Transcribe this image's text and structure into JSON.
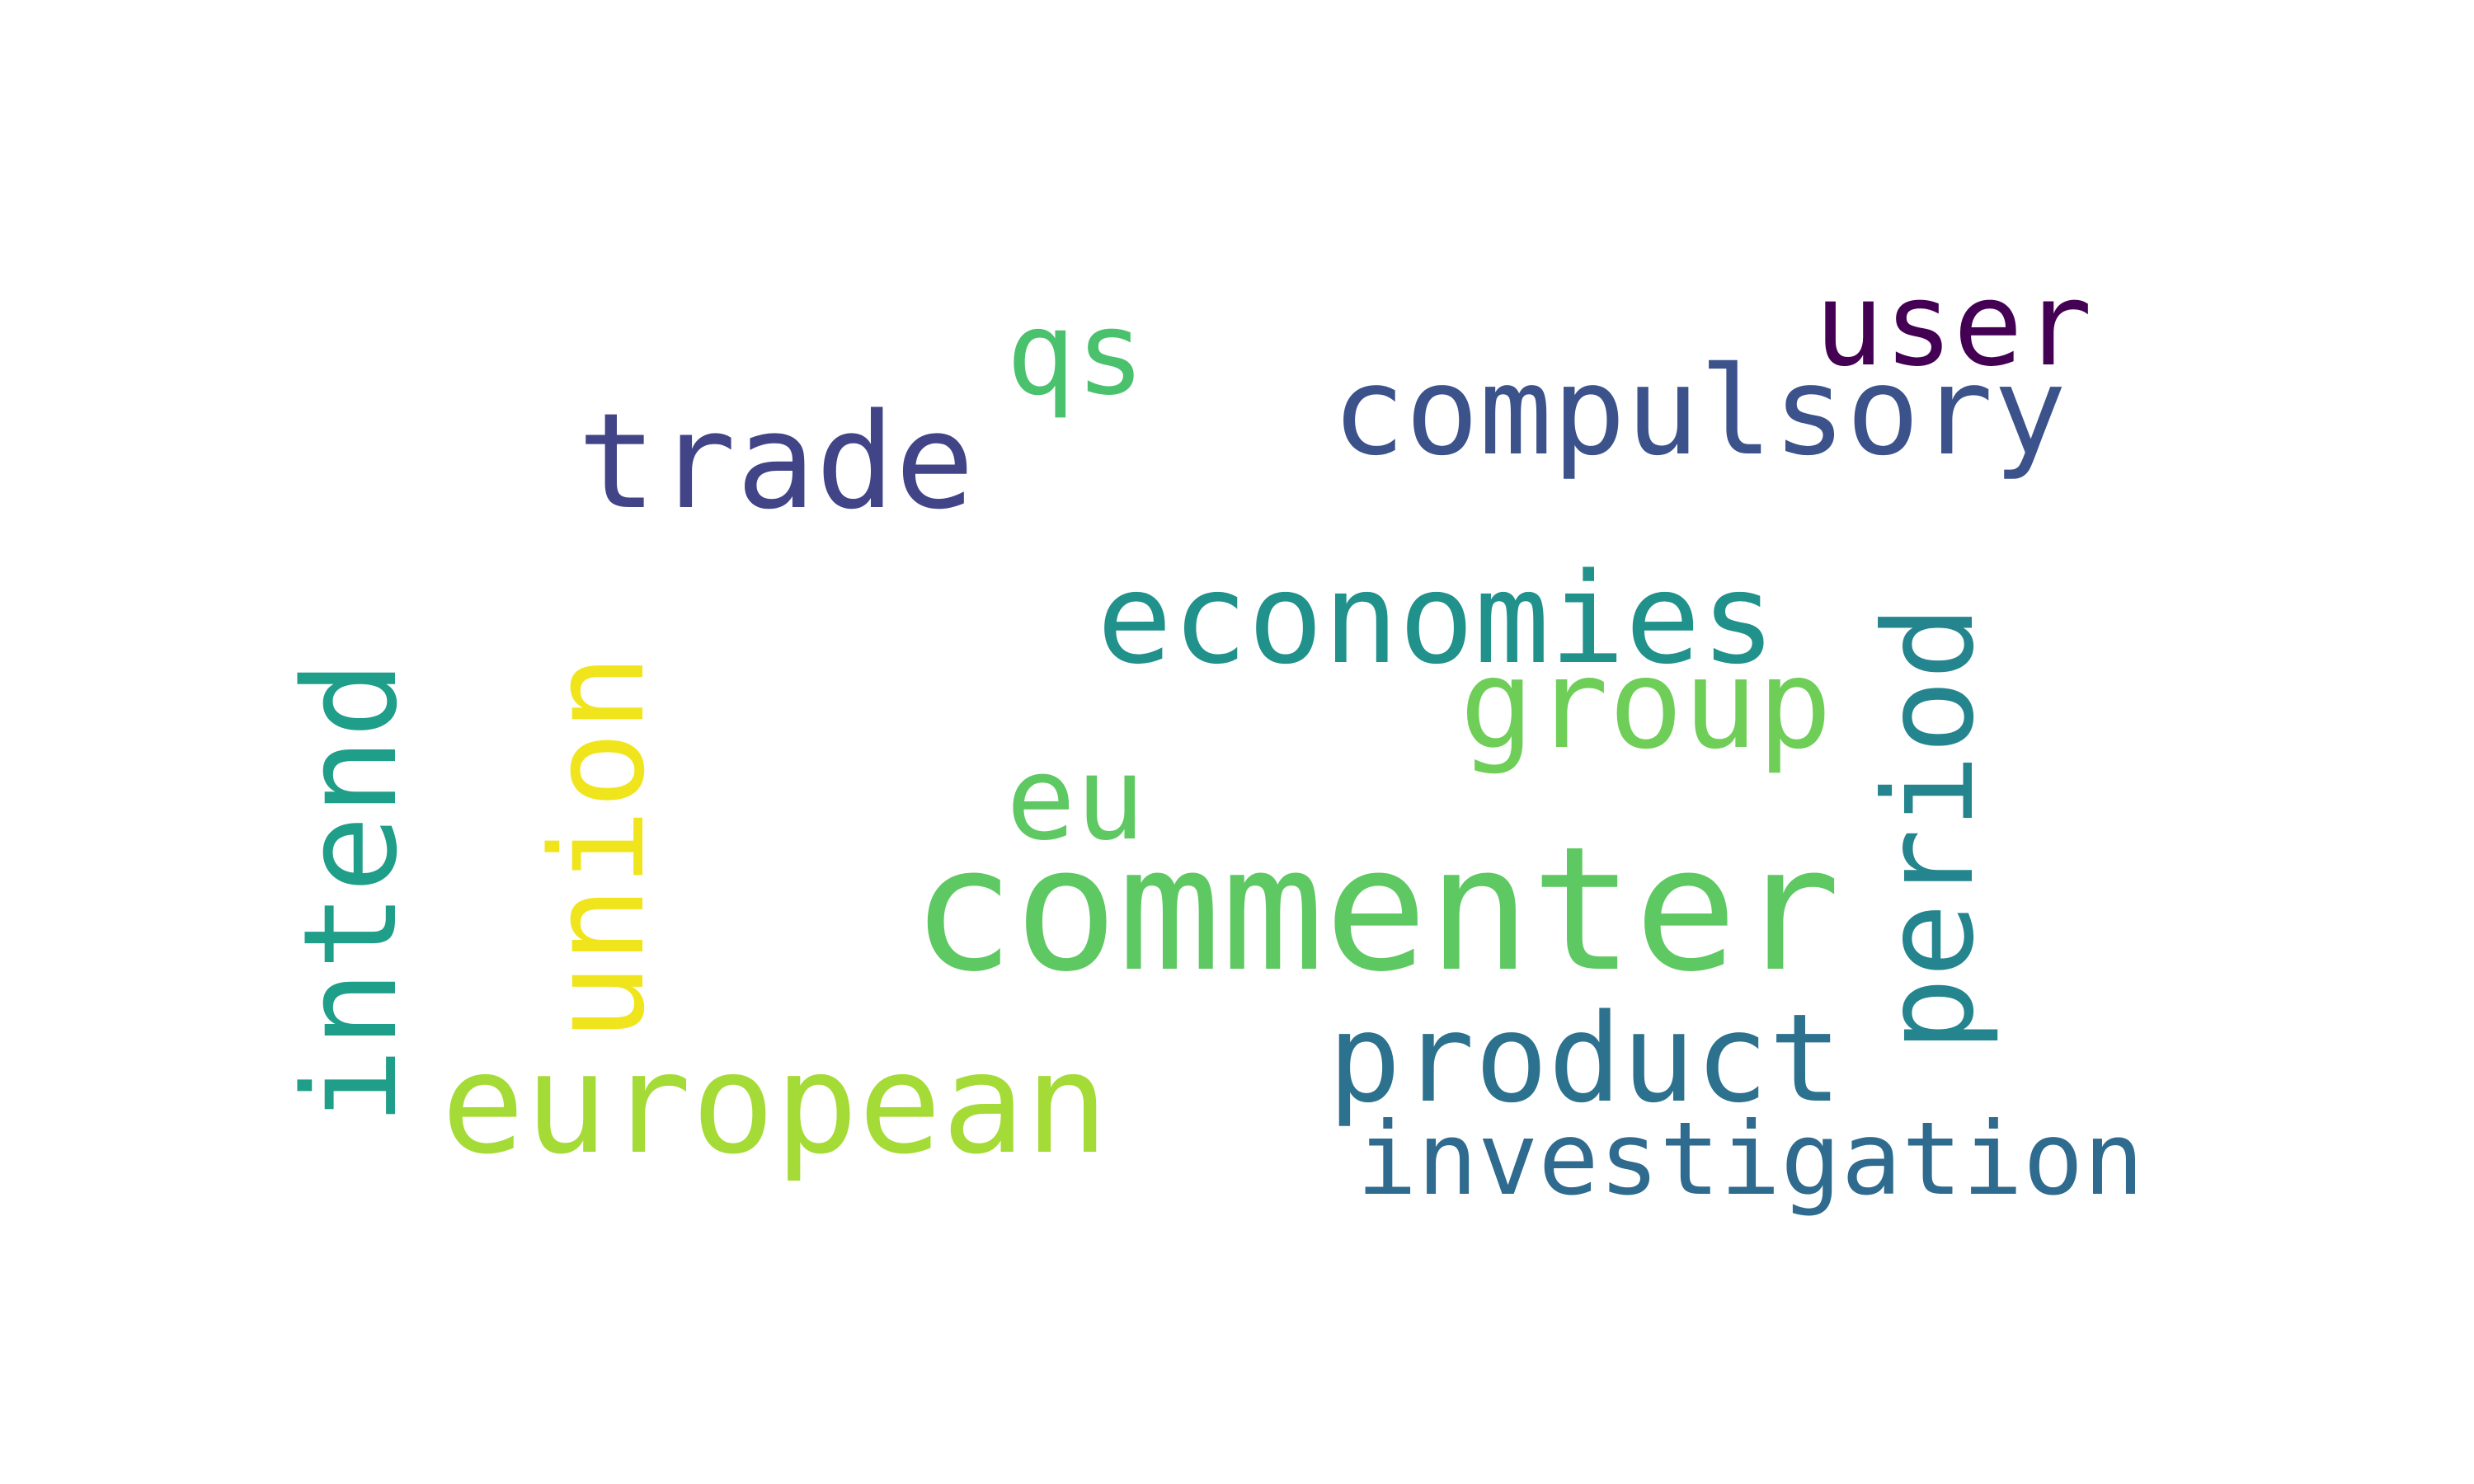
{
  "words": [
    {
      "text": "commenter",
      "color": "#5ec962"
    },
    {
      "text": "compulsory",
      "color": "#3b528b"
    },
    {
      "text": "user",
      "color": "#440154"
    },
    {
      "text": "trade",
      "color": "#414487"
    },
    {
      "text": "qs",
      "color": "#4ac16d"
    },
    {
      "text": "economies",
      "color": "#21918c"
    },
    {
      "text": "group",
      "color": "#6ece58"
    },
    {
      "text": "eu",
      "color": "#5ec962"
    },
    {
      "text": "period",
      "color": "#25858e"
    },
    {
      "text": "product",
      "color": "#2c728e"
    },
    {
      "text": "investigation",
      "color": "#2f6b8e"
    },
    {
      "text": "european",
      "color": "#a5db36"
    },
    {
      "text": "union",
      "color": "#f0e51c"
    },
    {
      "text": "intend",
      "color": "#1f9e89"
    }
  ]
}
